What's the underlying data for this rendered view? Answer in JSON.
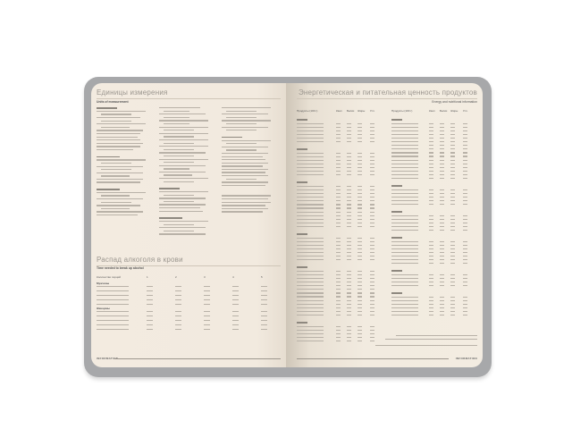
{
  "left_page": {
    "units": {
      "title": "Единицы измерения",
      "subtitle": "Units of measurement"
    },
    "alcohol": {
      "title": "Распад алкоголя в крови",
      "subtitle": "Time needed to break up alcohol",
      "header": [
        "Количество порций",
        "1",
        "2",
        "3",
        "4",
        "5"
      ],
      "groups": [
        "Мужчины",
        "Женщины"
      ]
    },
    "footer": "INFORMATION"
  },
  "right_page": {
    "title": "Энергетическая и питательная ценность продуктов",
    "subtitle": "Energy and nutritional information",
    "table_header": [
      "Продукты (100 г)",
      "Ккал",
      "Белки",
      "Жиры",
      "Угл."
    ],
    "footer": "INFORMATION"
  },
  "colors": {
    "cover": "#a7a8aa",
    "paper": "#f3ece1",
    "heading": "#9a958e"
  }
}
